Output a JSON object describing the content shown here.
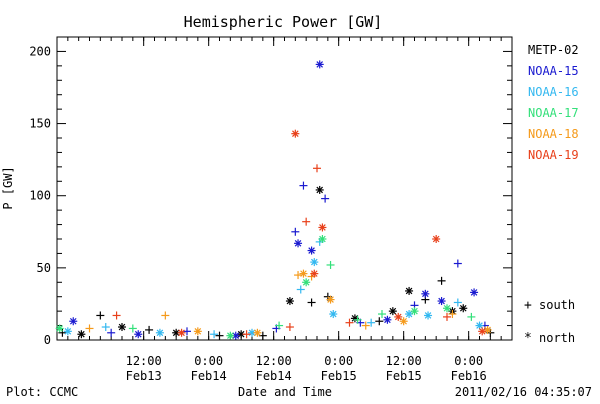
{
  "chart_data": {
    "type": "scatter",
    "title": "Hemispheric Power [GW]",
    "xlabel": "Date and Time",
    "ylabel": "P [GW]",
    "ylim": [
      0,
      210
    ],
    "xlim": [
      "2011-02-12T20:00",
      "2011-02-16T08:00"
    ],
    "yticks": [
      0,
      50,
      100,
      150,
      200
    ],
    "xticks": [
      {
        "time": "2011-02-13T12:00",
        "label": "12:00",
        "sublabel": "Feb13"
      },
      {
        "time": "2011-02-14T00:00",
        "label": "0:00",
        "sublabel": "Feb14"
      },
      {
        "time": "2011-02-14T12:00",
        "label": "12:00",
        "sublabel": "Feb14"
      },
      {
        "time": "2011-02-15T00:00",
        "label": "0:00",
        "sublabel": "Feb15"
      },
      {
        "time": "2011-02-15T12:00",
        "label": "12:00",
        "sublabel": "Feb15"
      },
      {
        "time": "2011-02-16T00:00",
        "label": "0:00",
        "sublabel": "Feb16"
      }
    ],
    "grid": false,
    "legend_position": "right",
    "marker_legend": [
      {
        "symbol": "+",
        "label": "south"
      },
      {
        "symbol": "*",
        "label": "north"
      }
    ],
    "series": [
      {
        "name": "METP-02",
        "color": "#000000",
        "points": [
          [
            "2011-02-12T21:00",
            5,
            "s"
          ],
          [
            "2011-02-13T00:30",
            4,
            "n"
          ],
          [
            "2011-02-13T04:00",
            17,
            "s"
          ],
          [
            "2011-02-13T08:00",
            9,
            "n"
          ],
          [
            "2011-02-13T13:00",
            7,
            "s"
          ],
          [
            "2011-02-13T18:00",
            5,
            "n"
          ],
          [
            "2011-02-14T02:00",
            3,
            "s"
          ],
          [
            "2011-02-14T06:00",
            4,
            "n"
          ],
          [
            "2011-02-14T10:00",
            3,
            "s"
          ],
          [
            "2011-02-14T15:00",
            27,
            "n"
          ],
          [
            "2011-02-14T19:00",
            26,
            "s"
          ],
          [
            "2011-02-14T20:30",
            104,
            "n"
          ],
          [
            "2011-02-14T22:00",
            30,
            "s"
          ],
          [
            "2011-02-15T03:00",
            15,
            "n"
          ],
          [
            "2011-02-15T07:30",
            13,
            "s"
          ],
          [
            "2011-02-15T10:00",
            20,
            "n"
          ],
          [
            "2011-02-15T13:00",
            34,
            "n"
          ],
          [
            "2011-02-15T16:00",
            28,
            "s"
          ],
          [
            "2011-02-15T19:00",
            41,
            "s"
          ],
          [
            "2011-02-15T21:00",
            20,
            "n"
          ],
          [
            "2011-02-15T23:00",
            22,
            "n"
          ],
          [
            "2011-02-16T04:00",
            5,
            "s"
          ]
        ]
      },
      {
        "name": "NOAA-15",
        "color": "#1a1ad0",
        "points": [
          [
            "2011-02-12T23:00",
            13,
            "n"
          ],
          [
            "2011-02-13T06:00",
            5,
            "s"
          ],
          [
            "2011-02-13T11:00",
            4,
            "n"
          ],
          [
            "2011-02-13T20:00",
            6,
            "s"
          ],
          [
            "2011-02-14T05:00",
            3,
            "n"
          ],
          [
            "2011-02-14T12:30",
            8,
            "s"
          ],
          [
            "2011-02-14T16:00",
            75,
            "s"
          ],
          [
            "2011-02-14T16:30",
            67,
            "n"
          ],
          [
            "2011-02-14T17:30",
            107,
            "s"
          ],
          [
            "2011-02-14T19:00",
            62,
            "n"
          ],
          [
            "2011-02-14T20:30",
            191,
            "n"
          ],
          [
            "2011-02-14T21:30",
            98,
            "s"
          ],
          [
            "2011-02-15T04:00",
            12,
            "s"
          ],
          [
            "2011-02-15T09:00",
            14,
            "n"
          ],
          [
            "2011-02-15T14:00",
            24,
            "s"
          ],
          [
            "2011-02-15T16:00",
            32,
            "n"
          ],
          [
            "2011-02-15T19:00",
            27,
            "n"
          ],
          [
            "2011-02-15T22:00",
            53,
            "s"
          ],
          [
            "2011-02-16T01:00",
            33,
            "n"
          ],
          [
            "2011-02-16T03:00",
            10,
            "s"
          ]
        ]
      },
      {
        "name": "NOAA-16",
        "color": "#33b8f0",
        "points": [
          [
            "2011-02-12T22:00",
            6,
            "n"
          ],
          [
            "2011-02-13T05:00",
            9,
            "s"
          ],
          [
            "2011-02-13T15:00",
            5,
            "n"
          ],
          [
            "2011-02-14T01:00",
            4,
            "s"
          ],
          [
            "2011-02-14T08:00",
            5,
            "n"
          ],
          [
            "2011-02-14T17:00",
            35,
            "s"
          ],
          [
            "2011-02-14T19:30",
            54,
            "n"
          ],
          [
            "2011-02-14T20:30",
            68,
            "s"
          ],
          [
            "2011-02-14T23:00",
            18,
            "n"
          ],
          [
            "2011-02-15T06:00",
            12,
            "s"
          ],
          [
            "2011-02-15T13:00",
            18,
            "n"
          ],
          [
            "2011-02-15T16:30",
            17,
            "n"
          ],
          [
            "2011-02-15T22:00",
            26,
            "s"
          ],
          [
            "2011-02-16T02:00",
            10,
            "n"
          ]
        ]
      },
      {
        "name": "NOAA-17",
        "color": "#33e07a",
        "points": [
          [
            "2011-02-12T20:30",
            8,
            "n"
          ],
          [
            "2011-02-13T10:00",
            8,
            "s"
          ],
          [
            "2011-02-14T04:00",
            3,
            "n"
          ],
          [
            "2011-02-14T13:00",
            10,
            "s"
          ],
          [
            "2011-02-14T18:00",
            40,
            "n"
          ],
          [
            "2011-02-14T21:00",
            70,
            "n"
          ],
          [
            "2011-02-14T22:30",
            52,
            "s"
          ],
          [
            "2011-02-15T03:30",
            14,
            "s"
          ],
          [
            "2011-02-15T08:00",
            18,
            "s"
          ],
          [
            "2011-02-15T14:00",
            20,
            "n"
          ],
          [
            "2011-02-15T20:00",
            22,
            "n"
          ],
          [
            "2011-02-16T00:30",
            16,
            "s"
          ]
        ]
      },
      {
        "name": "NOAA-18",
        "color": "#f59a1a",
        "points": [
          [
            "2011-02-13T02:00",
            8,
            "s"
          ],
          [
            "2011-02-13T16:00",
            17,
            "s"
          ],
          [
            "2011-02-13T22:00",
            6,
            "n"
          ],
          [
            "2011-02-14T09:00",
            5,
            "n"
          ],
          [
            "2011-02-14T16:30",
            45,
            "s"
          ],
          [
            "2011-02-14T17:30",
            46,
            "n"
          ],
          [
            "2011-02-14T19:00",
            44,
            "s"
          ],
          [
            "2011-02-14T22:30",
            28,
            "n"
          ],
          [
            "2011-02-15T05:00",
            10,
            "s"
          ],
          [
            "2011-02-15T12:00",
            13,
            "n"
          ],
          [
            "2011-02-15T21:00",
            18,
            "s"
          ],
          [
            "2011-02-16T03:30",
            7,
            "n"
          ]
        ]
      },
      {
        "name": "NOAA-19",
        "color": "#e8401a",
        "points": [
          [
            "2011-02-13T07:00",
            17,
            "s"
          ],
          [
            "2011-02-13T19:00",
            5,
            "n"
          ],
          [
            "2011-02-14T07:00",
            4,
            "s"
          ],
          [
            "2011-02-14T15:00",
            9,
            "s"
          ],
          [
            "2011-02-14T16:00",
            143,
            "n"
          ],
          [
            "2011-02-14T18:00",
            82,
            "s"
          ],
          [
            "2011-02-14T19:30",
            46,
            "n"
          ],
          [
            "2011-02-14T20:00",
            119,
            "s"
          ],
          [
            "2011-02-14T21:00",
            78,
            "n"
          ],
          [
            "2011-02-15T02:00",
            12,
            "s"
          ],
          [
            "2011-02-15T11:00",
            16,
            "n"
          ],
          [
            "2011-02-15T18:00",
            70,
            "n"
          ],
          [
            "2011-02-15T20:00",
            16,
            "s"
          ],
          [
            "2011-02-16T02:30",
            6,
            "n"
          ]
        ]
      }
    ]
  },
  "footer": {
    "left": "Plot: CCMC",
    "right": "2011/02/16 04:35:07"
  }
}
